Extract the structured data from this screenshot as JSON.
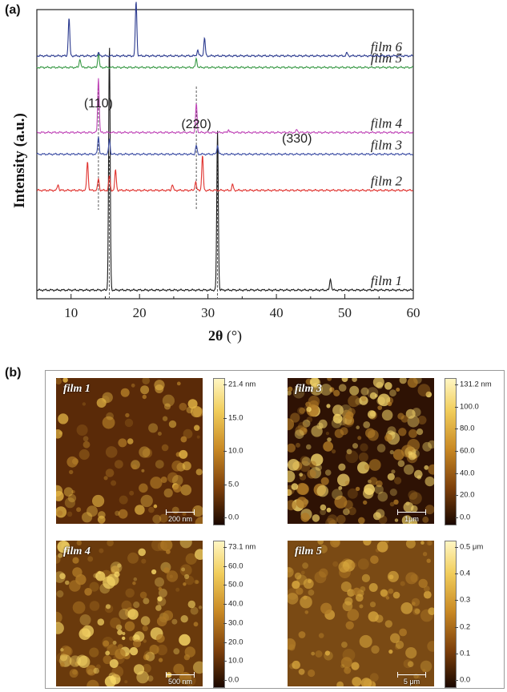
{
  "panel_a_label": "(a)",
  "panel_b_label": "(b)",
  "chart_data": {
    "type": "line",
    "xlabel": "2θ (°)",
    "ylabel": "Intensity (a.u.)",
    "xlim": [
      5,
      60
    ],
    "xticks": [
      10,
      20,
      30,
      40,
      50,
      60
    ],
    "yticks": [],
    "grid": false,
    "series": [
      {
        "name": "film 1",
        "color": "#1a1a1a",
        "baseline": 0.03,
        "peaks": [
          {
            "x": 15.6,
            "h": 0.85
          },
          {
            "x": 31.4,
            "h": 0.55
          },
          {
            "x": 47.9,
            "h": 0.04
          }
        ]
      },
      {
        "name": "film 2",
        "color": "#e0332f",
        "baseline": 0.375,
        "peaks": [
          {
            "x": 8.1,
            "h": 0.02
          },
          {
            "x": 12.4,
            "h": 0.1
          },
          {
            "x": 14.0,
            "h": 0.04
          },
          {
            "x": 15.6,
            "h": 0.05
          },
          {
            "x": 16.5,
            "h": 0.07
          },
          {
            "x": 24.8,
            "h": 0.02
          },
          {
            "x": 28.2,
            "h": 0.03
          },
          {
            "x": 29.2,
            "h": 0.12
          },
          {
            "x": 33.6,
            "h": 0.02
          }
        ]
      },
      {
        "name": "film 3",
        "color": "#3e4fa5",
        "baseline": 0.5,
        "peaks": [
          {
            "x": 14.0,
            "h": 0.06
          },
          {
            "x": 15.6,
            "h": 0.05
          },
          {
            "x": 28.3,
            "h": 0.03
          },
          {
            "x": 31.4,
            "h": 0.03
          }
        ]
      },
      {
        "name": "film 4",
        "color": "#c047b8",
        "baseline": 0.575,
        "peaks": [
          {
            "x": 14.0,
            "h": 0.19
          },
          {
            "x": 28.3,
            "h": 0.1
          },
          {
            "x": 33.0,
            "h": 0.01
          },
          {
            "x": 43.0,
            "h": 0.01
          }
        ]
      },
      {
        "name": "film 5",
        "color": "#3a9a47",
        "baseline": 0.8,
        "peaks": [
          {
            "x": 11.3,
            "h": 0.03
          },
          {
            "x": 14.0,
            "h": 0.05
          },
          {
            "x": 28.3,
            "h": 0.03
          }
        ]
      },
      {
        "name": "film 6",
        "color": "#2b3a8f",
        "baseline": 0.84,
        "peaks": [
          {
            "x": 9.7,
            "h": 0.13
          },
          {
            "x": 14.0,
            "h": 0.01
          },
          {
            "x": 19.5,
            "h": 0.19
          },
          {
            "x": 28.5,
            "h": 0.02
          },
          {
            "x": 29.5,
            "h": 0.06
          },
          {
            "x": 50.3,
            "h": 0.01
          }
        ]
      }
    ],
    "annotations": [
      {
        "text": "(110)",
        "x": 14.0
      },
      {
        "text": "(220)",
        "x": 28.3
      },
      {
        "text": "(330)",
        "x": 43.0
      }
    ]
  },
  "afm_panels": [
    {
      "film": "film 1",
      "scale": "200 nm",
      "colorbar": [
        "21.4 nm",
        "15.0",
        "10.0",
        "5.0",
        "0.0"
      ]
    },
    {
      "film": "film 3",
      "scale": "1μm",
      "colorbar": [
        "131.2 nm",
        "100.0",
        "80.0",
        "60.0",
        "40.0",
        "20.0",
        "0.0"
      ]
    },
    {
      "film": "film 4",
      "scale": "500 nm",
      "colorbar": [
        "73.1 nm",
        "60.0",
        "50.0",
        "40.0",
        "30.0",
        "20.0",
        "10.0",
        "0.0"
      ]
    },
    {
      "film": "film 5",
      "scale": "5 μm",
      "colorbar": [
        "0.5 μm",
        "0.4",
        "0.3",
        "0.2",
        "0.1",
        "0.0"
      ]
    }
  ]
}
